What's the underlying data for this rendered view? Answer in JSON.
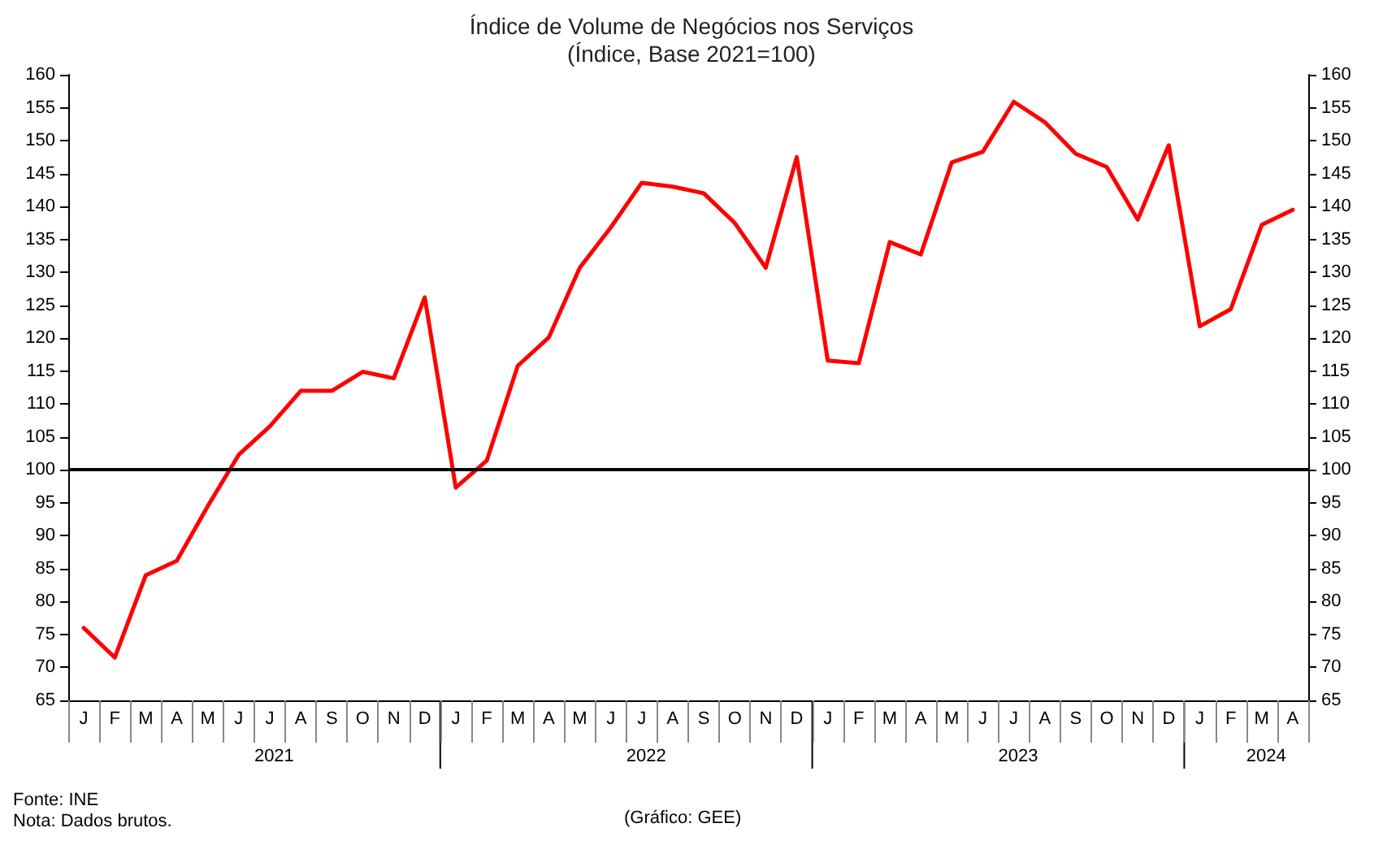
{
  "chart_data": {
    "type": "line",
    "title": "Índice de Volume de Negócios nos Serviços",
    "subtitle": "(Índice, Base 2021=100)",
    "categories": [
      "J",
      "F",
      "M",
      "A",
      "M",
      "J",
      "J",
      "A",
      "S",
      "O",
      "N",
      "D",
      "J",
      "F",
      "M",
      "A",
      "M",
      "J",
      "J",
      "A",
      "S",
      "O",
      "N",
      "D",
      "J",
      "F",
      "M",
      "A",
      "M",
      "J",
      "J",
      "A",
      "S",
      "O",
      "N",
      "D",
      "J",
      "F",
      "M",
      "A"
    ],
    "series": [
      {
        "color": "#ff0000",
        "values": [
          76,
          71.5,
          84,
          86.2,
          94.5,
          102.3,
          106.6,
          112,
          112,
          114.9,
          113.9,
          126.2,
          97.3,
          101.4,
          115.8,
          120.1,
          130.7,
          136.8,
          143.6,
          143,
          142,
          137.5,
          130.7,
          147.5,
          116.6,
          116.2,
          134.6,
          132.7,
          146.7,
          148.3,
          155.9,
          152.8,
          148,
          146,
          138,
          149.3,
          121.8,
          124.4,
          137.2,
          139.5
        ]
      }
    ],
    "ylim": [
      65,
      160
    ],
    "yticks": [
      65,
      70,
      75,
      80,
      85,
      90,
      95,
      100,
      105,
      110,
      115,
      120,
      125,
      130,
      135,
      140,
      145,
      150,
      155,
      160
    ],
    "y2lim": [
      65,
      160
    ],
    "y2ticks": [
      65,
      70,
      75,
      80,
      85,
      90,
      95,
      100,
      105,
      110,
      115,
      120,
      125,
      130,
      135,
      140,
      145,
      150,
      155,
      160
    ],
    "ref_lines": [
      {
        "axis": "y",
        "value": 100,
        "color": "#000000",
        "line_style": "solid"
      }
    ],
    "annotations": [
      "2021",
      "2022",
      "2023",
      "2024",
      "Fonte: INE",
      "Nota: Dados brutos.",
      "(Gráfico: GEE)"
    ],
    "grid": false,
    "marker": "none",
    "line_style": "solid"
  }
}
